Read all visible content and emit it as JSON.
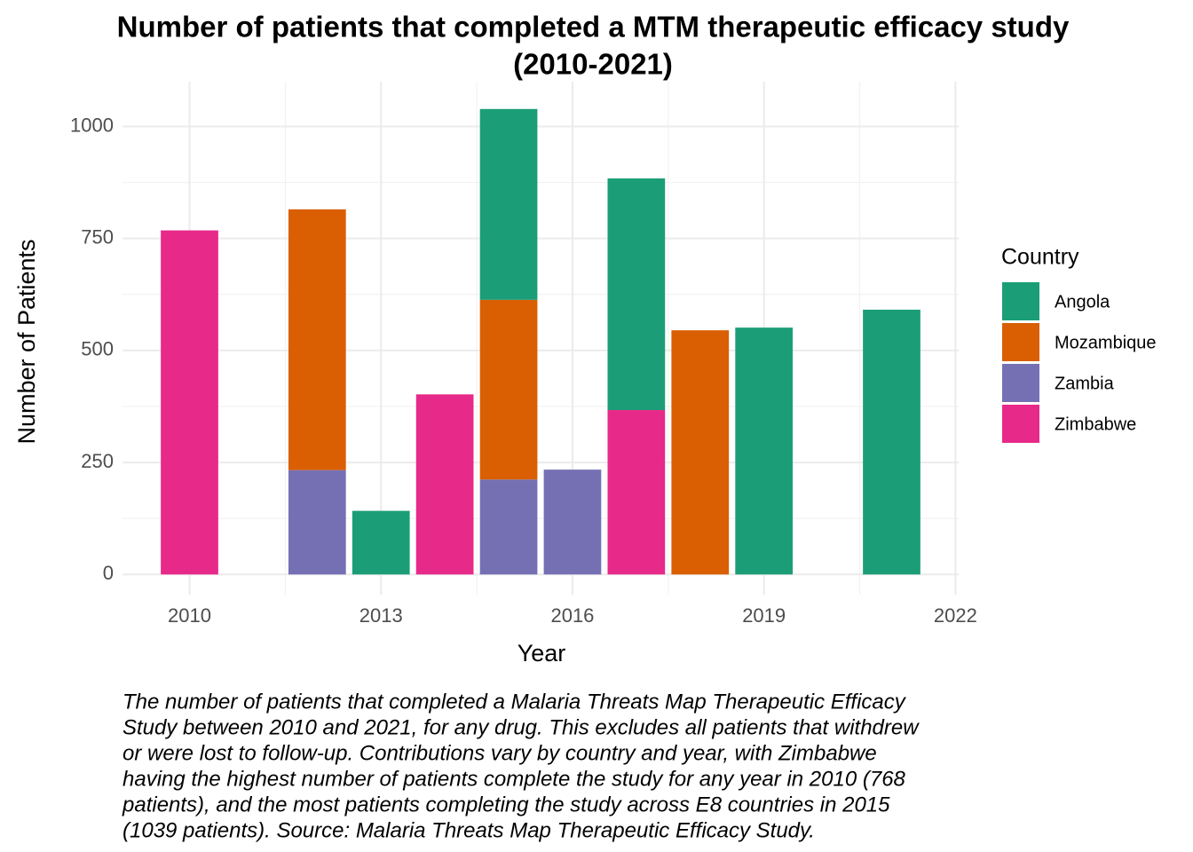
{
  "chart_data": {
    "type": "bar",
    "stacked": true,
    "title": [
      "Number of patients that completed a MTM therapeutic efficacy study",
      "(2010-2021)"
    ],
    "x_label": "Year",
    "y_label": "Number of Patients",
    "legend_title": "Country",
    "legend_position": "right",
    "grid": true,
    "x": [
      2010,
      2012,
      2013,
      2014,
      2015,
      2016,
      2017,
      2018,
      2019,
      2021
    ],
    "series": [
      {
        "name": "Angola",
        "color": "#1b9e77",
        "values": [
          null,
          null,
          142,
          null,
          426,
          null,
          517,
          null,
          551,
          591
        ]
      },
      {
        "name": "Mozambique",
        "color": "#d95f02",
        "values": [
          null,
          582,
          null,
          null,
          401,
          null,
          null,
          545,
          null,
          null
        ]
      },
      {
        "name": "Zambia",
        "color": "#7570b3",
        "values": [
          null,
          233,
          null,
          null,
          212,
          234,
          null,
          null,
          null,
          null
        ]
      },
      {
        "name": "Zimbabwe",
        "color": "#e7298a",
        "values": [
          768,
          null,
          null,
          402,
          null,
          null,
          367,
          null,
          null,
          null
        ]
      }
    ],
    "bar_width": 0.9,
    "xlim": [
      2008.95,
      2022.05
    ],
    "xticks": [
      2010,
      2013,
      2016,
      2019,
      2022
    ],
    "x_minor_ticks": [
      2011.5,
      2014.5,
      2017.5,
      2020.5
    ],
    "ylim": [
      -45,
      1100
    ],
    "yticks": [
      0,
      250,
      500,
      750,
      1000
    ],
    "y_minor_ticks": [
      125,
      375,
      625,
      875
    ],
    "caption": [
      "The number of patients that completed a Malaria Threats Map Therapeutic Efficacy",
      "Study between 2010 and 2021, for any drug. This excludes all patients that withdrew",
      "or were lost to follow-up. Contributions vary by country and year, with Zimbabwe",
      "having the highest number of patients complete the study for any year in 2010 (768",
      "patients), and the most patients completing the study across E8 countries in 2015",
      "(1039 patients). Source: Malaria Threats Map Therapeutic Efficacy Study."
    ]
  }
}
